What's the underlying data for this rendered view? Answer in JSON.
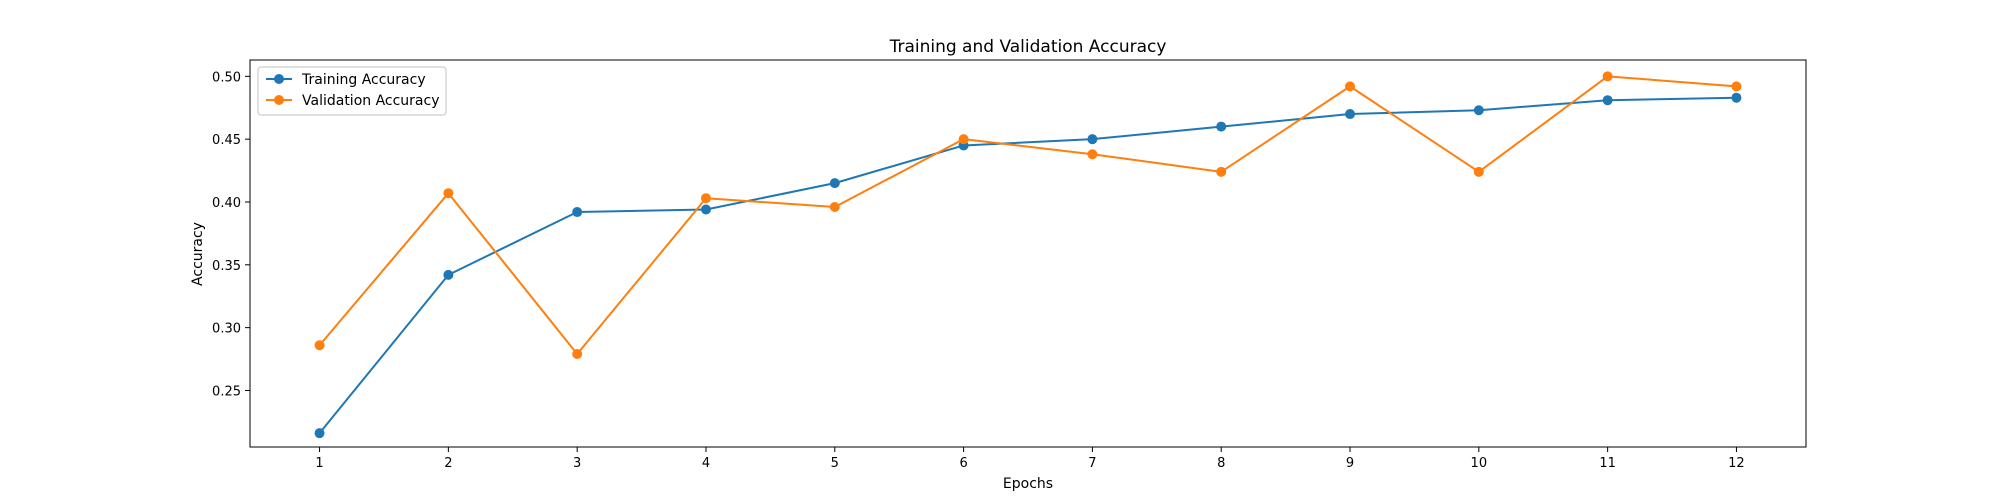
{
  "chart_data": {
    "type": "line",
    "title": "Training and Validation Accuracy",
    "xlabel": "Epochs",
    "ylabel": "Accuracy",
    "x": [
      1,
      2,
      3,
      4,
      5,
      6,
      7,
      8,
      9,
      10,
      11,
      12
    ],
    "xlim": [
      0.46,
      12.54
    ],
    "ylim": [
      0.205,
      0.513
    ],
    "yticks": [
      0.25,
      0.3,
      0.35,
      0.4,
      0.45,
      0.5
    ],
    "ytick_labels": [
      "0.25",
      "0.30",
      "0.35",
      "0.40",
      "0.45",
      "0.50"
    ],
    "xtick_labels": [
      "1",
      "2",
      "3",
      "4",
      "5",
      "6",
      "7",
      "8",
      "9",
      "10",
      "11",
      "12"
    ],
    "grid": false,
    "legend_position": "top-left",
    "series": [
      {
        "name": "Training Accuracy",
        "color": "#1f77b4",
        "values": [
          0.216,
          0.342,
          0.392,
          0.394,
          0.415,
          0.445,
          0.45,
          0.46,
          0.47,
          0.473,
          0.481,
          0.483
        ]
      },
      {
        "name": "Validation Accuracy",
        "color": "#ff7f0e",
        "values": [
          0.286,
          0.407,
          0.279,
          0.403,
          0.396,
          0.45,
          0.438,
          0.424,
          0.492,
          0.424,
          0.5,
          0.492
        ]
      }
    ]
  }
}
